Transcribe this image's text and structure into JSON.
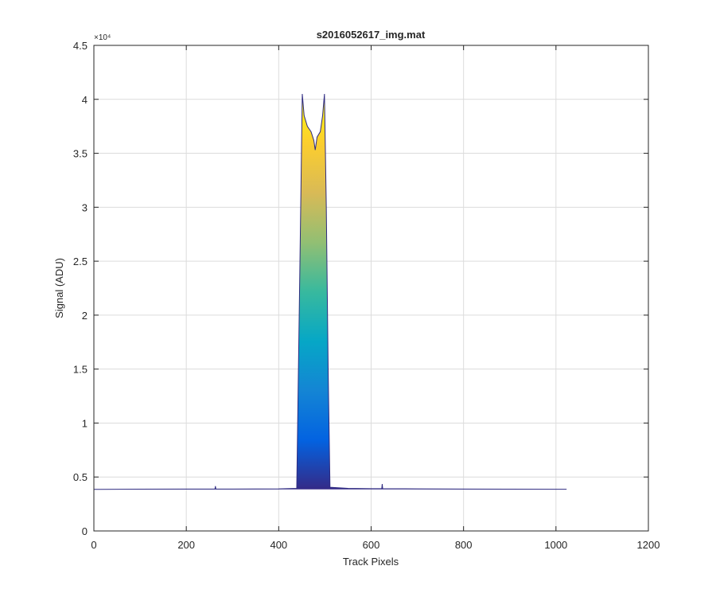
{
  "chart_data": {
    "type": "area",
    "title": "s2016052617_img.mat",
    "xlabel": "Track Pixels",
    "ylabel": "Signal (ADU)",
    "y_exponent_label": "×10⁴",
    "xlim": [
      0,
      1200
    ],
    "xticks": [
      0,
      200,
      400,
      600,
      800,
      1000,
      1200
    ],
    "ylim": [
      0,
      45000
    ],
    "yticks": [
      {
        "value": 0,
        "label": "0"
      },
      {
        "value": 5000,
        "label": "0.5"
      },
      {
        "value": 10000,
        "label": "1"
      },
      {
        "value": 15000,
        "label": "1.5"
      },
      {
        "value": 20000,
        "label": "2"
      },
      {
        "value": 25000,
        "label": "2.5"
      },
      {
        "value": 30000,
        "label": "3"
      },
      {
        "value": 35000,
        "label": "3.5"
      },
      {
        "value": 40000,
        "label": "4"
      },
      {
        "value": 45000,
        "label": "4.5"
      }
    ],
    "grid": true,
    "colormap": [
      "#352a87",
      "#0363e1",
      "#1485d4",
      "#06a7c6",
      "#38b99e",
      "#92bf73",
      "#d9ba56",
      "#fcce2e",
      "#f9fb0e"
    ],
    "series": [
      {
        "name": "Signal",
        "color": "#2e2a80",
        "x": [
          0,
          100,
          200,
          262,
          263,
          264,
          300,
          400,
          439,
          445,
          451,
          455,
          462,
          470,
          476,
          479,
          483,
          490,
          495,
          499,
          503,
          507,
          511,
          550,
          600,
          623,
          624,
          625,
          700,
          800,
          900,
          1000,
          1023
        ],
        "values": [
          3850,
          3870,
          3880,
          3880,
          4150,
          3880,
          3880,
          3900,
          3950,
          22000,
          40500,
          38500,
          37500,
          37000,
          36200,
          35300,
          36500,
          37000,
          38500,
          40500,
          30000,
          15000,
          4050,
          3950,
          3920,
          3920,
          4350,
          3920,
          3900,
          3880,
          3870,
          3860,
          3860
        ]
      }
    ]
  }
}
